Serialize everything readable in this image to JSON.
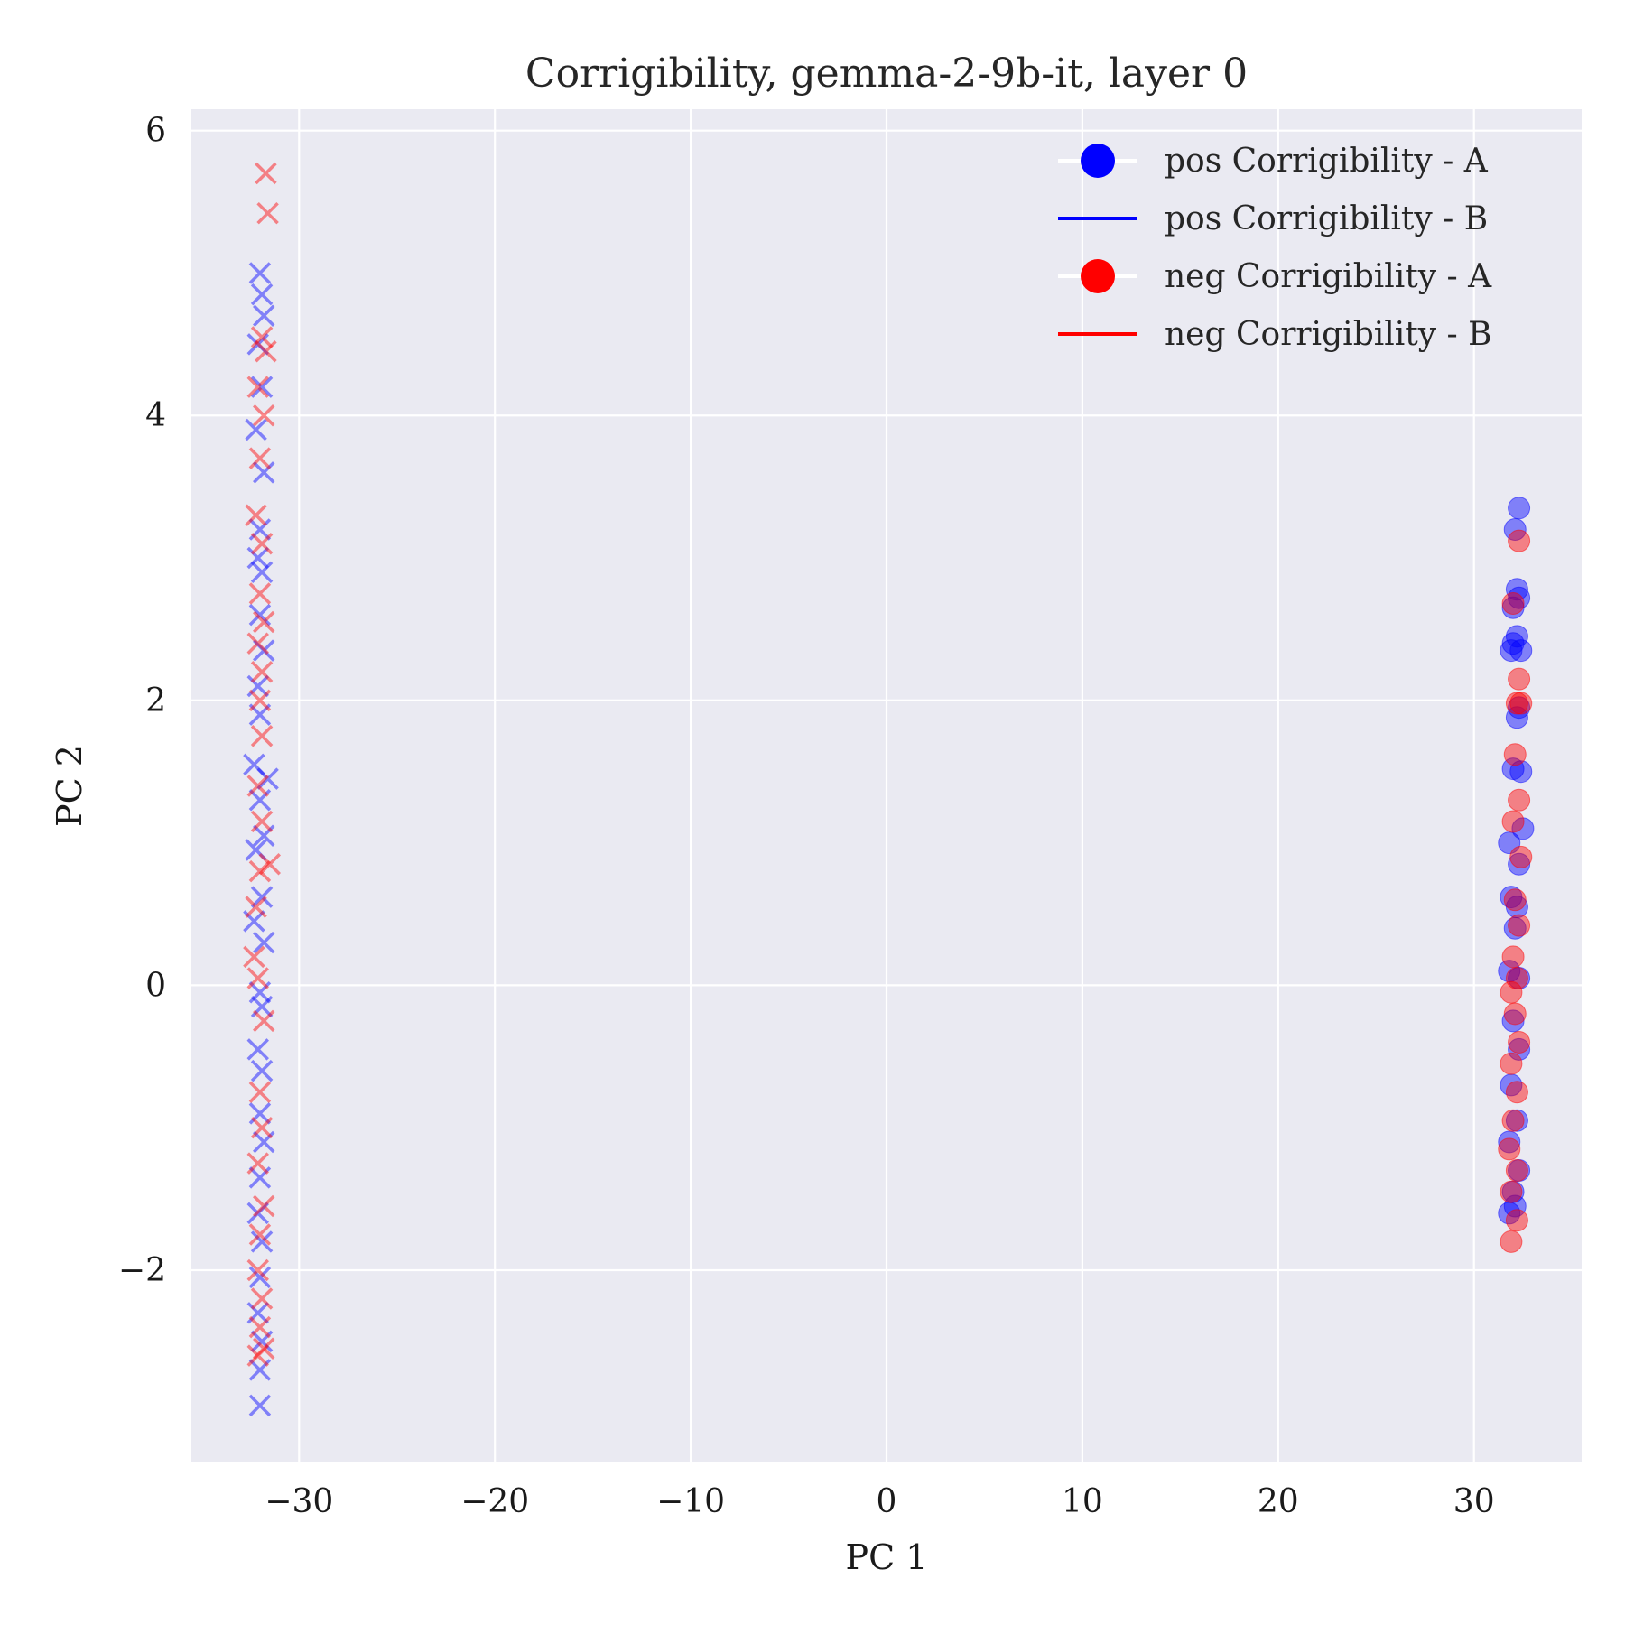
{
  "chart_data": {
    "type": "scatter",
    "title": "Corrigibility, gemma-2-9b-it, layer 0",
    "xlabel": "PC 1",
    "ylabel": "PC 2",
    "xlim": [
      -35.5,
      35.5
    ],
    "ylim": [
      -3.35,
      6.15
    ],
    "xticks": [
      -30,
      -20,
      -10,
      0,
      10,
      20,
      30
    ],
    "yticks": [
      -2,
      0,
      2,
      4,
      6
    ],
    "grid": true,
    "background": "#eaeaf2",
    "legend_position": "top-right",
    "series": [
      {
        "name": "pos Corrigibility - A",
        "color": "#0000ff",
        "marker": "circle",
        "points": [
          [
            32.3,
            3.35
          ],
          [
            32.1,
            3.2
          ],
          [
            32.2,
            2.78
          ],
          [
            32.3,
            2.72
          ],
          [
            32.0,
            2.65
          ],
          [
            32.2,
            2.45
          ],
          [
            32.0,
            2.4
          ],
          [
            32.4,
            2.35
          ],
          [
            31.9,
            2.35
          ],
          [
            32.3,
            1.95
          ],
          [
            32.2,
            1.88
          ],
          [
            32.4,
            1.5
          ],
          [
            32.0,
            1.52
          ],
          [
            32.5,
            1.1
          ],
          [
            31.8,
            1.0
          ],
          [
            32.3,
            0.85
          ],
          [
            31.9,
            0.62
          ],
          [
            32.2,
            0.55
          ],
          [
            32.1,
            0.4
          ],
          [
            31.8,
            0.1
          ],
          [
            32.3,
            0.05
          ],
          [
            32.0,
            -0.25
          ],
          [
            32.3,
            -0.45
          ],
          [
            31.9,
            -0.7
          ],
          [
            32.2,
            -0.95
          ],
          [
            31.8,
            -1.1
          ],
          [
            32.3,
            -1.3
          ],
          [
            32.0,
            -1.45
          ],
          [
            31.8,
            -1.6
          ],
          [
            32.1,
            -1.55
          ]
        ]
      },
      {
        "name": "pos Corrigibility - B",
        "color": "#0000ff",
        "marker": "x",
        "points": [
          [
            -32.0,
            5.0
          ],
          [
            -31.9,
            4.85
          ],
          [
            -31.8,
            4.7
          ],
          [
            -32.1,
            4.5
          ],
          [
            -31.9,
            4.2
          ],
          [
            -32.2,
            3.9
          ],
          [
            -31.8,
            3.6
          ],
          [
            -32.0,
            3.2
          ],
          [
            -32.1,
            3.0
          ],
          [
            -31.9,
            2.9
          ],
          [
            -32.0,
            2.6
          ],
          [
            -31.8,
            2.35
          ],
          [
            -32.1,
            2.1
          ],
          [
            -32.0,
            1.9
          ],
          [
            -32.3,
            1.55
          ],
          [
            -31.6,
            1.45
          ],
          [
            -32.0,
            1.3
          ],
          [
            -31.8,
            1.05
          ],
          [
            -32.2,
            0.95
          ],
          [
            -31.9,
            0.62
          ],
          [
            -32.3,
            0.45
          ],
          [
            -31.8,
            0.3
          ],
          [
            -32.0,
            -0.05
          ],
          [
            -31.9,
            -0.15
          ],
          [
            -32.1,
            -0.45
          ],
          [
            -31.9,
            -0.6
          ],
          [
            -32.0,
            -0.9
          ],
          [
            -31.8,
            -1.1
          ],
          [
            -32.0,
            -1.35
          ],
          [
            -32.1,
            -1.6
          ],
          [
            -31.9,
            -1.8
          ],
          [
            -32.0,
            -2.05
          ],
          [
            -32.1,
            -2.3
          ],
          [
            -31.9,
            -2.5
          ],
          [
            -32.0,
            -2.7
          ],
          [
            -32.0,
            -2.95
          ]
        ]
      },
      {
        "name": "neg Corrigibility - A",
        "color": "#ff0000",
        "marker": "circle",
        "points": [
          [
            32.3,
            3.12
          ],
          [
            32.0,
            2.68
          ],
          [
            32.3,
            2.15
          ],
          [
            32.2,
            1.98
          ],
          [
            32.4,
            1.98
          ],
          [
            32.1,
            1.62
          ],
          [
            32.3,
            1.3
          ],
          [
            32.0,
            1.15
          ],
          [
            32.4,
            0.9
          ],
          [
            32.1,
            0.6
          ],
          [
            32.3,
            0.42
          ],
          [
            32.0,
            0.2
          ],
          [
            32.2,
            0.05
          ],
          [
            31.9,
            -0.05
          ],
          [
            32.1,
            -0.2
          ],
          [
            32.3,
            -0.4
          ],
          [
            31.9,
            -0.55
          ],
          [
            32.2,
            -0.75
          ],
          [
            32.0,
            -0.95
          ],
          [
            31.8,
            -1.15
          ],
          [
            32.2,
            -1.3
          ],
          [
            31.9,
            -1.45
          ],
          [
            32.2,
            -1.65
          ],
          [
            31.9,
            -1.8
          ]
        ]
      },
      {
        "name": "neg Corrigibility - B",
        "color": "#ff0000",
        "marker": "x",
        "points": [
          [
            -31.7,
            5.7
          ],
          [
            -31.6,
            5.42
          ],
          [
            -31.9,
            4.55
          ],
          [
            -31.7,
            4.45
          ],
          [
            -32.1,
            4.2
          ],
          [
            -31.8,
            4.0
          ],
          [
            -32.0,
            3.7
          ],
          [
            -32.2,
            3.3
          ],
          [
            -31.9,
            3.1
          ],
          [
            -32.0,
            2.75
          ],
          [
            -31.8,
            2.55
          ],
          [
            -32.1,
            2.4
          ],
          [
            -31.9,
            2.2
          ],
          [
            -32.0,
            2.0
          ],
          [
            -31.9,
            1.75
          ],
          [
            -32.1,
            1.4
          ],
          [
            -31.9,
            1.15
          ],
          [
            -31.5,
            0.85
          ],
          [
            -32.0,
            0.8
          ],
          [
            -32.2,
            0.55
          ],
          [
            -32.3,
            0.2
          ],
          [
            -32.1,
            0.05
          ],
          [
            -31.8,
            -0.25
          ],
          [
            -32.0,
            -0.75
          ],
          [
            -31.9,
            -1.0
          ],
          [
            -32.1,
            -1.25
          ],
          [
            -31.8,
            -1.55
          ],
          [
            -32.0,
            -1.75
          ],
          [
            -32.1,
            -2.0
          ],
          [
            -31.9,
            -2.2
          ],
          [
            -32.0,
            -2.4
          ],
          [
            -31.8,
            -2.55
          ],
          [
            -32.1,
            -2.6
          ]
        ]
      }
    ]
  }
}
